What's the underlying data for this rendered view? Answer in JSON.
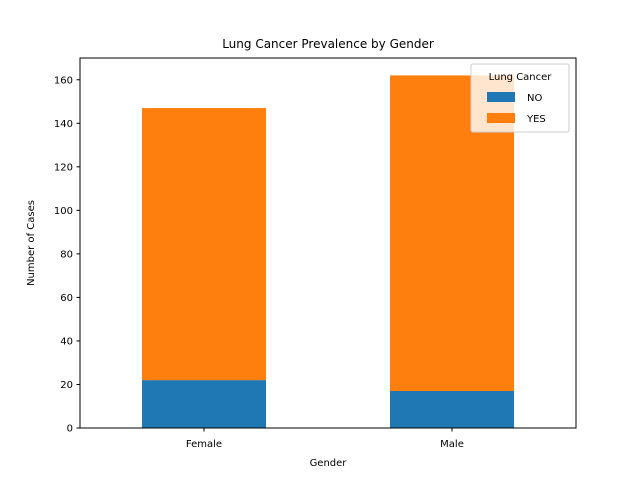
{
  "chart_data": {
    "type": "bar",
    "stacked": true,
    "title": "Lung Cancer Prevalence by Gender",
    "xlabel": "Gender",
    "ylabel": "Number of Cases",
    "categories": [
      "Female",
      "Male"
    ],
    "series": [
      {
        "name": "NO",
        "values": [
          22,
          17
        ],
        "color": "#1f77b4"
      },
      {
        "name": "YES",
        "values": [
          125,
          145
        ],
        "color": "#ff7f0e"
      }
    ],
    "ylim": [
      0,
      170
    ],
    "yticks": [
      0,
      20,
      40,
      60,
      80,
      100,
      120,
      140,
      160
    ],
    "legend": {
      "title": "Lung Cancer",
      "position": "top-right"
    },
    "grid": false
  }
}
